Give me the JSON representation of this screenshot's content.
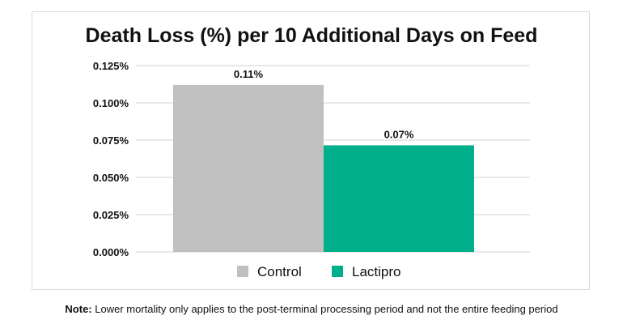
{
  "chart_data": {
    "type": "bar",
    "title": "Death Loss (%) per 10 Additional Days on Feed",
    "xlabel": "",
    "ylabel": "",
    "ylim": [
      0,
      0.125
    ],
    "yticks": [
      "0.000%",
      "0.025%",
      "0.050%",
      "0.075%",
      "0.100%",
      "0.125%"
    ],
    "grid": true,
    "legend_position": "bottom",
    "series": [
      {
        "name": "Control",
        "value": 0.112,
        "label": "0.11%",
        "color": "#c0c0c0"
      },
      {
        "name": "Lactipro",
        "value": 0.0715,
        "label": "0.07%",
        "color": "#00af8c"
      }
    ]
  },
  "note": {
    "prefix": "Note:",
    "text": " Lower mortality only applies to the post-terminal processing period and not the entire feeding period"
  }
}
